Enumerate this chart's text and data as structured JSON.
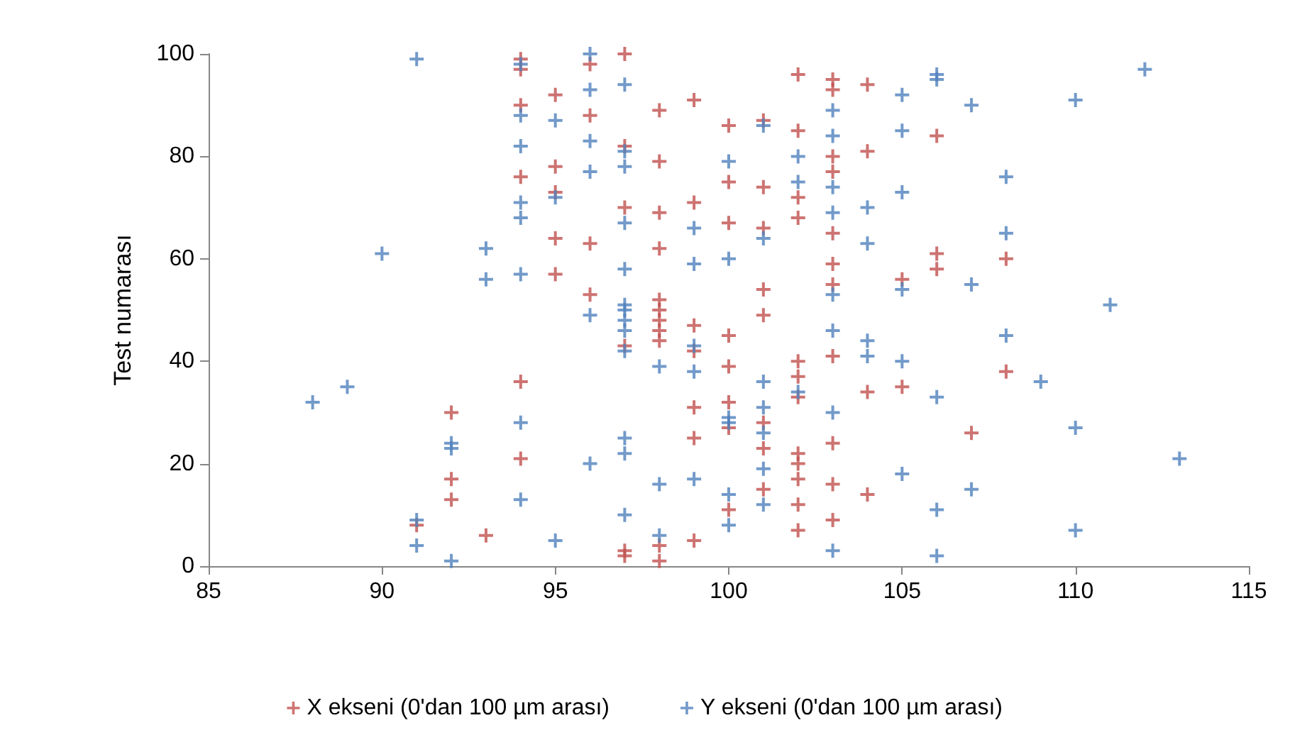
{
  "chart_data": {
    "type": "scatter",
    "ylabel": "Test numarası",
    "xlim": [
      85,
      115
    ],
    "xticks": [
      85,
      90,
      95,
      100,
      105,
      110,
      115
    ],
    "ylim": [
      0,
      100
    ],
    "yticks": [
      0,
      20,
      40,
      60,
      80,
      100
    ],
    "grid": false,
    "legend": "bottom",
    "marker": "cross",
    "series": [
      {
        "name": "X ekseni (0'dan 100 µm arası)",
        "color": "#c0504d",
        "x": [
          91,
          92,
          92,
          92,
          93,
          94,
          94,
          94,
          94,
          94,
          94,
          95,
          95,
          95,
          95,
          95,
          96,
          96,
          96,
          96,
          97,
          97,
          97,
          97,
          97,
          97,
          98,
          98,
          98,
          98,
          98,
          98,
          98,
          98,
          98,
          98,
          98,
          99,
          99,
          99,
          99,
          99,
          99,
          99,
          100,
          100,
          100,
          100,
          100,
          100,
          100,
          100,
          101,
          101,
          101,
          101,
          101,
          101,
          101,
          101,
          102,
          102,
          102,
          102,
          102,
          102,
          102,
          102,
          102,
          102,
          102,
          102,
          103,
          103,
          103,
          103,
          103,
          103,
          103,
          103,
          103,
          103,
          103,
          104,
          104,
          104,
          104,
          105,
          105,
          106,
          106,
          106,
          107,
          108,
          108
        ],
        "values": [
          8,
          30,
          17,
          13,
          6,
          99,
          97,
          90,
          76,
          36,
          21,
          92,
          78,
          73,
          64,
          57,
          98,
          88,
          63,
          53,
          100,
          82,
          70,
          43,
          3,
          2,
          89,
          79,
          69,
          62,
          52,
          50,
          48,
          46,
          44,
          4,
          1,
          91,
          71,
          47,
          42,
          31,
          25,
          5,
          86,
          75,
          67,
          45,
          39,
          32,
          27,
          11,
          87,
          74,
          66,
          54,
          49,
          28,
          23,
          15,
          96,
          85,
          72,
          68,
          40,
          37,
          33,
          22,
          20,
          17,
          12,
          7,
          95,
          93,
          80,
          77,
          65,
          59,
          55,
          41,
          24,
          16,
          9,
          94,
          81,
          34,
          14,
          56,
          35,
          84,
          61,
          58,
          26,
          60,
          38
        ]
      },
      {
        "name": "Y ekseni (0'dan 100 µm arası)",
        "color": "#4f81bd",
        "x": [
          88,
          89,
          90,
          91,
          91,
          91,
          92,
          92,
          92,
          93,
          93,
          94,
          94,
          94,
          94,
          94,
          94,
          94,
          94,
          95,
          95,
          95,
          96,
          96,
          96,
          96,
          96,
          96,
          97,
          97,
          97,
          97,
          97,
          97,
          97,
          97,
          97,
          97,
          97,
          97,
          97,
          98,
          98,
          98,
          99,
          99,
          99,
          99,
          99,
          100,
          100,
          100,
          100,
          100,
          100,
          101,
          101,
          101,
          101,
          101,
          101,
          101,
          102,
          102,
          102,
          103,
          103,
          103,
          103,
          103,
          103,
          103,
          103,
          104,
          104,
          104,
          104,
          105,
          105,
          105,
          105,
          105,
          105,
          106,
          106,
          106,
          106,
          106,
          107,
          107,
          107,
          108,
          108,
          108,
          109,
          110,
          110,
          110,
          111,
          112,
          113
        ],
        "values": [
          32,
          35,
          61,
          99,
          9,
          4,
          24,
          23,
          1,
          62,
          56,
          98,
          88,
          82,
          71,
          68,
          57,
          28,
          13,
          87,
          72,
          5,
          100,
          93,
          83,
          77,
          49,
          20,
          94,
          81,
          78,
          67,
          58,
          51,
          50,
          48,
          46,
          42,
          25,
          22,
          10,
          39,
          16,
          6,
          66,
          59,
          43,
          38,
          17,
          79,
          60,
          29,
          28,
          14,
          8,
          86,
          64,
          36,
          31,
          26,
          19,
          12,
          80,
          75,
          34,
          89,
          84,
          74,
          69,
          53,
          46,
          30,
          3,
          70,
          63,
          44,
          41,
          92,
          85,
          73,
          54,
          40,
          18,
          96,
          95,
          33,
          11,
          2,
          90,
          55,
          15,
          76,
          65,
          45,
          36,
          91,
          27,
          7,
          51,
          97,
          21
        ]
      }
    ]
  }
}
